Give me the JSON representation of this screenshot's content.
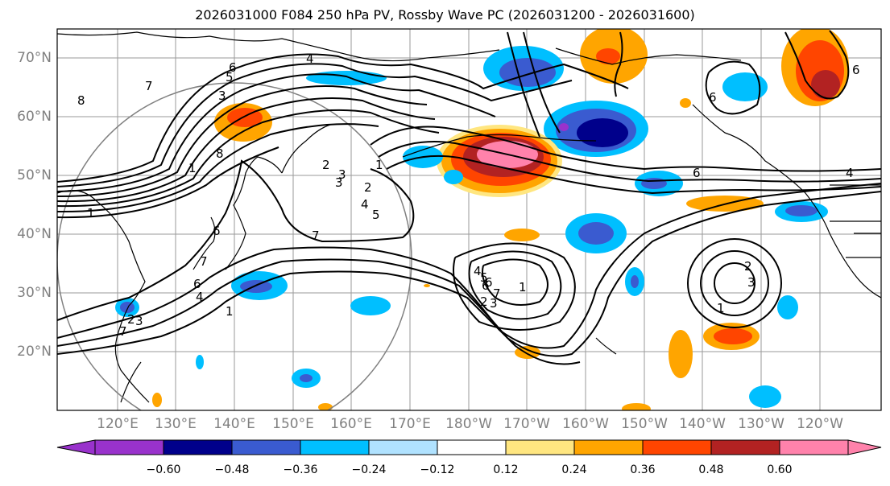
{
  "title": "2026031000 F084 250 hPa PV, Rossby Wave PC (2026031200 - 2026031600)",
  "lat_labels": [
    "70°N",
    "60°N",
    "50°N",
    "40°N",
    "30°N",
    "20°N"
  ],
  "lon_labels": [
    "120°E",
    "130°E",
    "140°E",
    "150°E",
    "160°E",
    "170°E",
    "180°W",
    "170°W",
    "160°W",
    "150°W",
    "140°W",
    "130°W",
    "120°W"
  ],
  "colorbar": {
    "ticks": [
      "−0.60",
      "−0.48",
      "−0.36",
      "−0.24",
      "−0.12",
      "0.12",
      "0.24",
      "0.36",
      "0.48",
      "0.60"
    ],
    "colors": [
      "#9932cc",
      "#00008b",
      "#3a5bd0",
      "#00bfff",
      "#b0e2ff",
      "#ffffff",
      "#ffe680",
      "#ffa500",
      "#ff4500",
      "#b22222",
      "#ff82ab"
    ]
  },
  "contour_labels": [
    "8",
    "7",
    "6",
    "5",
    "4",
    "3",
    "2",
    "1",
    "1",
    "2",
    "3",
    "4",
    "5",
    "6",
    "7",
    "8",
    "7",
    "6",
    "4",
    "6",
    "7",
    "1",
    "2",
    "3",
    "1",
    "2",
    "3",
    "4",
    "5",
    "6",
    "7",
    "1",
    "2",
    "3",
    "1",
    "3",
    "6",
    "6",
    "4",
    "6"
  ]
}
